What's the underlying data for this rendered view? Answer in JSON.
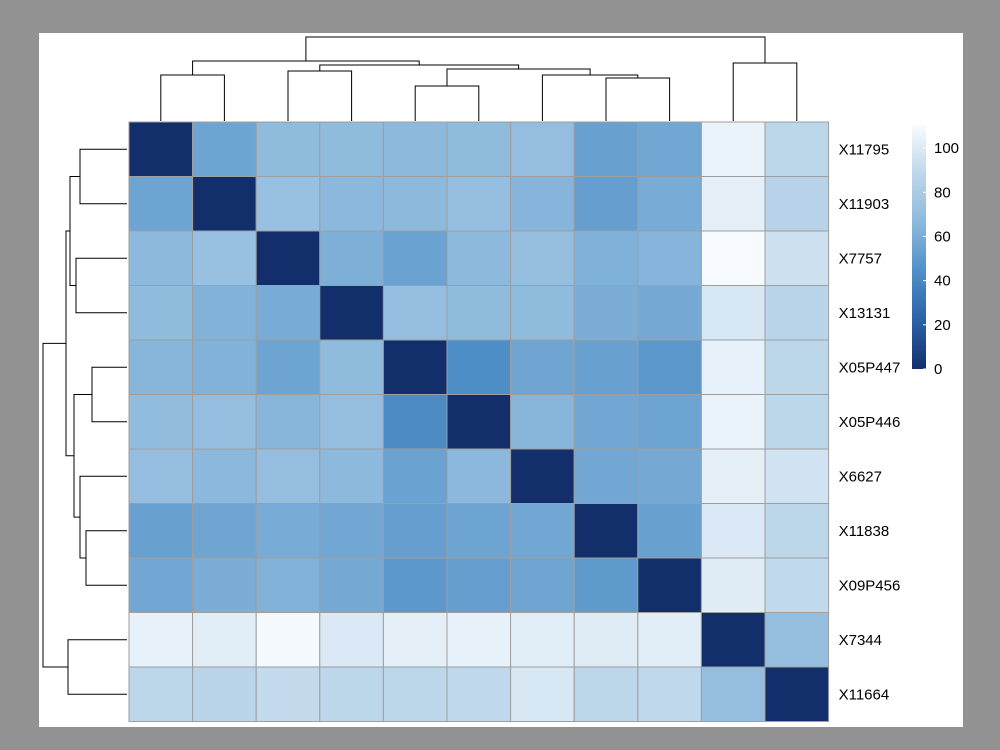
{
  "chart_data": {
    "type": "heatmap",
    "title": "",
    "row_labels": [
      "X11795",
      "X11903",
      "X7757",
      "X13131",
      "X05P447",
      "X05P446",
      "X6627",
      "X11838",
      "X09P456",
      "X7344",
      "X11664"
    ],
    "col_labels": [],
    "matrix": [
      [
        0,
        55,
        68,
        68,
        67,
        68,
        70,
        53,
        57,
        105,
        88
      ],
      [
        55,
        0,
        72,
        66,
        67,
        70,
        64,
        52,
        59,
        103,
        86
      ],
      [
        67,
        72,
        0,
        61,
        54,
        67,
        71,
        62,
        64,
        110,
        94
      ],
      [
        68,
        63,
        59,
        0,
        70,
        68,
        68,
        60,
        58,
        98,
        87
      ],
      [
        65,
        63,
        55,
        68,
        0,
        44,
        56,
        53,
        49,
        104,
        88
      ],
      [
        69,
        70,
        65,
        70,
        42,
        0,
        65,
        57,
        55,
        105,
        88
      ],
      [
        70,
        66,
        70,
        67,
        54,
        66,
        0,
        57,
        58,
        103,
        96
      ],
      [
        53,
        56,
        59,
        57,
        52,
        55,
        57,
        0,
        53,
        99,
        88
      ],
      [
        57,
        60,
        63,
        58,
        49,
        52,
        56,
        50,
        0,
        101,
        90
      ],
      [
        104,
        102,
        109,
        99,
        103,
        104,
        102,
        101,
        102,
        0,
        71
      ],
      [
        88,
        87,
        91,
        88,
        88,
        89,
        98,
        88,
        89,
        70,
        0
      ]
    ],
    "legend": {
      "ticks": [
        0,
        20,
        40,
        60,
        80,
        100
      ],
      "range": [
        0,
        110
      ],
      "position": "top-right",
      "colors": [
        "#132f6b",
        "#2c61a8",
        "#4f8fc7",
        "#8bb8dc",
        "#bcd6ea",
        "#f7fbff"
      ]
    },
    "grid_color": "#9e9e9e",
    "dendrogram": {
      "rows": true,
      "columns": true
    }
  }
}
